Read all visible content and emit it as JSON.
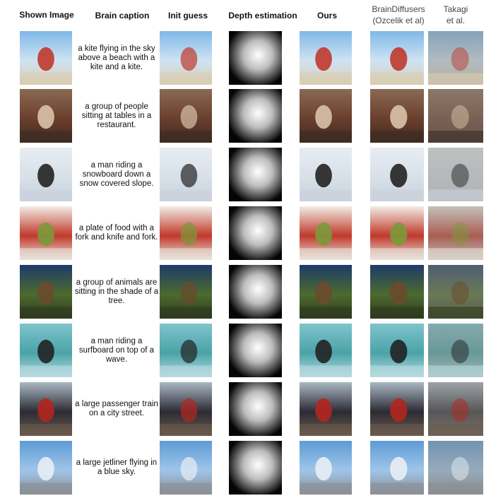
{
  "headers": {
    "shown": "Shown Image",
    "caption": "Brain caption",
    "init": "Init guess",
    "depth": "Depth estimation",
    "ours": "Ours",
    "braindiff_line1": "BrainDiffusers",
    "braindiff_line2": "(Ozcelik et al)",
    "takagi_line1": "Takagi",
    "takagi_line2": "et al."
  },
  "rows": [
    {
      "caption": "a kite flying in the sky above a beach with a kite and a kite."
    },
    {
      "caption": "a group of people sitting at tables in a restaurant."
    },
    {
      "caption": "a man riding a snowboard down a snow covered slope."
    },
    {
      "caption": "a plate of food with a fork and knife and fork."
    },
    {
      "caption": "a group of animals are sitting in the shade of a tree."
    },
    {
      "caption": "a man riding a surfboard on top of a wave."
    },
    {
      "caption": "a large passenger train on a city street."
    },
    {
      "caption": "a large jetliner flying in a blue sky."
    }
  ]
}
